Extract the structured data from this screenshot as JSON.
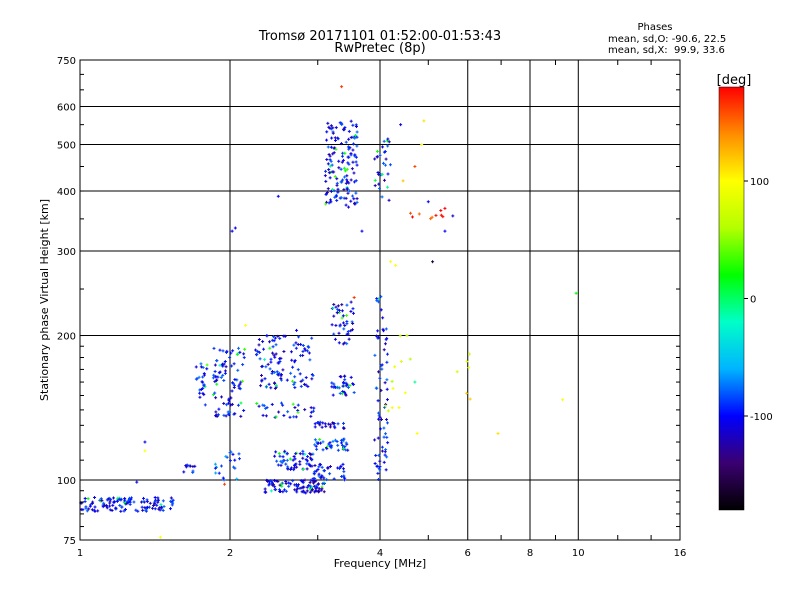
{
  "chart_data": {
    "type": "scatter",
    "title": "Tromsø 20171101 01:52:00-01:53:43",
    "subtitle": "RwPretec (8p)",
    "xlabel": "Frequency [MHz]",
    "ylabel": "Stationary phase Virtual Height [km]",
    "xscale": "log",
    "yscale": "log",
    "xlim": [
      1,
      16
    ],
    "ylim": [
      75,
      750
    ],
    "xticks": [
      1,
      2,
      4,
      6,
      8,
      10,
      16
    ],
    "xtick_labels": [
      "1",
      "2",
      "4",
      "6",
      "8",
      "10",
      "16"
    ],
    "yticks": [
      75,
      100,
      200,
      300,
      400,
      500,
      600,
      750
    ],
    "ytick_labels": [
      "75",
      "100",
      "200",
      "300",
      "400",
      "500",
      "600",
      "750"
    ],
    "grid": true,
    "stats": {
      "heading": "Phases",
      "line1": "mean, sd,O: -90.6, 22.5",
      "line2": "mean, sd,X:  99.9, 33.6"
    },
    "colorbar": {
      "label": "[deg]",
      "range": [
        -180,
        180
      ],
      "ticks": [
        100,
        0,
        -100
      ],
      "tick_labels": [
        "100",
        "0",
        "-100"
      ],
      "colors": [
        "#000000",
        "#3a0070",
        "#0000ff",
        "#00b4ff",
        "#00ffc8",
        "#00ff00",
        "#b4ff00",
        "#ffff00",
        "#ff8c00",
        "#ff0000"
      ]
    },
    "clusters": [
      {
        "f": [
          1.0,
          1.55
        ],
        "h": [
          86,
          92
        ],
        "n": 130,
        "phase": -100
      },
      {
        "f": [
          1.6,
          1.7
        ],
        "h": [
          103,
          108
        ],
        "n": 10,
        "phase": -100
      },
      {
        "f": [
          1.7,
          1.8
        ],
        "h": [
          140,
          175
        ],
        "n": 25,
        "phase": -95
      },
      {
        "f": [
          1.85,
          2.15
        ],
        "h": [
          135,
          190
        ],
        "n": 90,
        "phase": -100
      },
      {
        "f": [
          1.85,
          2.1
        ],
        "h": [
          100,
          115
        ],
        "n": 20,
        "phase": -80
      },
      {
        "f": [
          2.25,
          2.95
        ],
        "h": [
          155,
          200
        ],
        "n": 110,
        "phase": -100
      },
      {
        "f": [
          2.25,
          2.95
        ],
        "h": [
          135,
          145
        ],
        "n": 30,
        "phase": -100
      },
      {
        "f": [
          2.45,
          2.95
        ],
        "h": [
          105,
          115
        ],
        "n": 60,
        "phase": -100
      },
      {
        "f": [
          2.35,
          3.1
        ],
        "h": [
          94,
          100
        ],
        "n": 100,
        "phase": -110
      },
      {
        "f": [
          2.9,
          3.4
        ],
        "h": [
          100,
          108
        ],
        "n": 40,
        "phase": -100
      },
      {
        "f": [
          2.95,
          3.45
        ],
        "h": [
          115,
          122
        ],
        "n": 40,
        "phase": -95
      },
      {
        "f": [
          2.95,
          3.4
        ],
        "h": [
          128,
          132
        ],
        "n": 25,
        "phase": -110
      },
      {
        "f": [
          3.2,
          3.55
        ],
        "h": [
          150,
          165
        ],
        "n": 35,
        "phase": -100
      },
      {
        "f": [
          3.2,
          3.55
        ],
        "h": [
          190,
          235
        ],
        "n": 45,
        "phase": -100
      },
      {
        "f": [
          3.9,
          4.15
        ],
        "h": [
          100,
          250
        ],
        "n": 70,
        "phase": -100
      },
      {
        "f": [
          3.1,
          3.6
        ],
        "h": [
          370,
          560
        ],
        "n": 150,
        "phase": -100
      },
      {
        "f": [
          3.9,
          4.2
        ],
        "h": [
          380,
          520
        ],
        "n": 30,
        "phase": -100
      },
      {
        "f": [
          4.1,
          4.7
        ],
        "h": [
          130,
          200
        ],
        "n": 12,
        "phase": 80
      },
      {
        "f": [
          4.6,
          5.4
        ],
        "h": [
          340,
          370
        ],
        "n": 10,
        "phase": 165
      },
      {
        "f": [
          5.5,
          6.1
        ],
        "h": [
          145,
          200
        ],
        "n": 6,
        "phase": 100
      }
    ],
    "points": [
      {
        "f": 1.35,
        "h": 115,
        "phase": 100
      },
      {
        "f": 1.35,
        "h": 120,
        "phase": -100
      },
      {
        "f": 1.45,
        "h": 76,
        "phase": 100
      },
      {
        "f": 1.95,
        "h": 98,
        "phase": 160
      },
      {
        "f": 2.02,
        "h": 330,
        "phase": -100
      },
      {
        "f": 2.05,
        "h": 335,
        "phase": -100
      },
      {
        "f": 2.5,
        "h": 390,
        "phase": -100
      },
      {
        "f": 2.72,
        "h": 205,
        "phase": -100
      },
      {
        "f": 3.35,
        "h": 660,
        "phase": 165
      },
      {
        "f": 3.55,
        "h": 240,
        "phase": 165
      },
      {
        "f": 3.68,
        "h": 330,
        "phase": -100
      },
      {
        "f": 4.2,
        "h": 285,
        "phase": 100
      },
      {
        "f": 4.3,
        "h": 280,
        "phase": 100
      },
      {
        "f": 4.4,
        "h": 550,
        "phase": -110
      },
      {
        "f": 4.45,
        "h": 420,
        "phase": 120
      },
      {
        "f": 4.7,
        "h": 450,
        "phase": 160
      },
      {
        "f": 4.85,
        "h": 500,
        "phase": 100
      },
      {
        "f": 4.9,
        "h": 560,
        "phase": 110
      },
      {
        "f": 5.0,
        "h": 380,
        "phase": -100
      },
      {
        "f": 5.1,
        "h": 285,
        "phase": -160
      },
      {
        "f": 5.4,
        "h": 330,
        "phase": -100
      },
      {
        "f": 5.6,
        "h": 355,
        "phase": -110
      },
      {
        "f": 6.9,
        "h": 125,
        "phase": 110
      },
      {
        "f": 9.3,
        "h": 147,
        "phase": 100
      },
      {
        "f": 9.9,
        "h": 245,
        "phase": 20
      },
      {
        "f": 4.75,
        "h": 125,
        "phase": 100
      },
      {
        "f": 4.7,
        "h": 160,
        "phase": -10
      },
      {
        "f": 1.3,
        "h": 99,
        "phase": -100
      },
      {
        "f": 2.15,
        "h": 210,
        "phase": 100
      }
    ]
  }
}
